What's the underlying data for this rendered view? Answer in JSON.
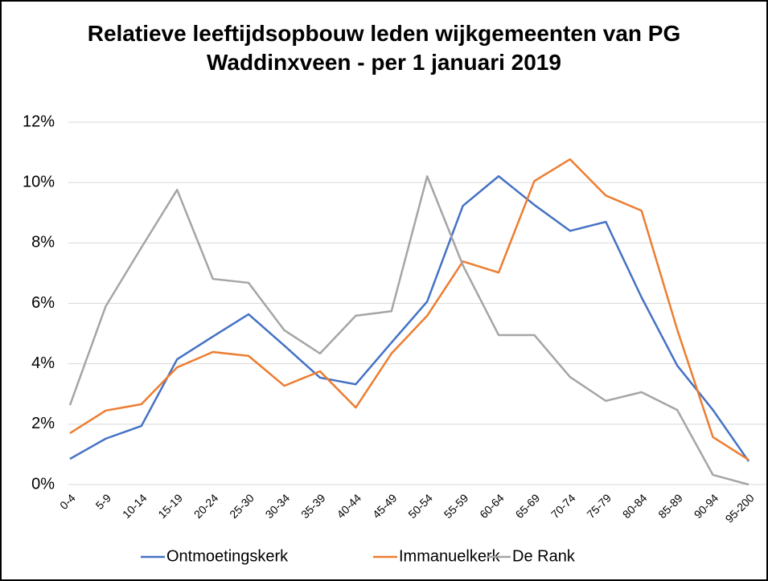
{
  "chart_data": {
    "type": "line",
    "title": "Relatieve leeftijdsopbouw leden wijkgemeenten van PG Waddinxveen - per 1 januari 2019",
    "categories": [
      "0-4",
      "5-9",
      "10-14",
      "15-19",
      "20-24",
      "25-30",
      "30-34",
      "35-39",
      "40-44",
      "45-49",
      "50-54",
      "55-59",
      "60-64",
      "65-69",
      "70-74",
      "75-79",
      "80-84",
      "85-89",
      "90-94",
      "95-200"
    ],
    "series": [
      {
        "name": "Ontmoetingskerk",
        "color": "#4472c4",
        "values": [
          0.85,
          1.52,
          1.94,
          4.15,
          4.9,
          5.64,
          4.6,
          3.54,
          3.32,
          4.7,
          6.06,
          9.23,
          10.21,
          9.26,
          8.4,
          8.7,
          6.2,
          3.94,
          2.47,
          0.77
        ]
      },
      {
        "name": "Immanuelkerk",
        "color": "#ed7d31",
        "values": [
          1.7,
          2.45,
          2.66,
          3.88,
          4.39,
          4.26,
          3.27,
          3.75,
          2.55,
          4.34,
          5.59,
          7.39,
          7.02,
          10.05,
          10.77,
          9.57,
          9.07,
          5.13,
          1.57,
          0.82
        ]
      },
      {
        "name": "De Rank",
        "color": "#a5a5a5",
        "values": [
          2.63,
          5.9,
          7.85,
          9.76,
          6.81,
          6.68,
          5.11,
          4.34,
          5.59,
          5.74,
          10.21,
          7.26,
          4.95,
          4.95,
          3.56,
          2.77,
          3.06,
          2.47,
          0.32,
          0
        ]
      }
    ],
    "ylim": [
      0,
      12
    ],
    "yticks": [
      {
        "value": 0,
        "label": "0%"
      },
      {
        "value": 2,
        "label": "2%"
      },
      {
        "value": 4,
        "label": "4%"
      },
      {
        "value": 6,
        "label": "6%"
      },
      {
        "value": 8,
        "label": "8%"
      },
      {
        "value": 10,
        "label": "10%"
      },
      {
        "value": 12,
        "label": "12%"
      }
    ],
    "grid": true,
    "legend": "bottom"
  }
}
